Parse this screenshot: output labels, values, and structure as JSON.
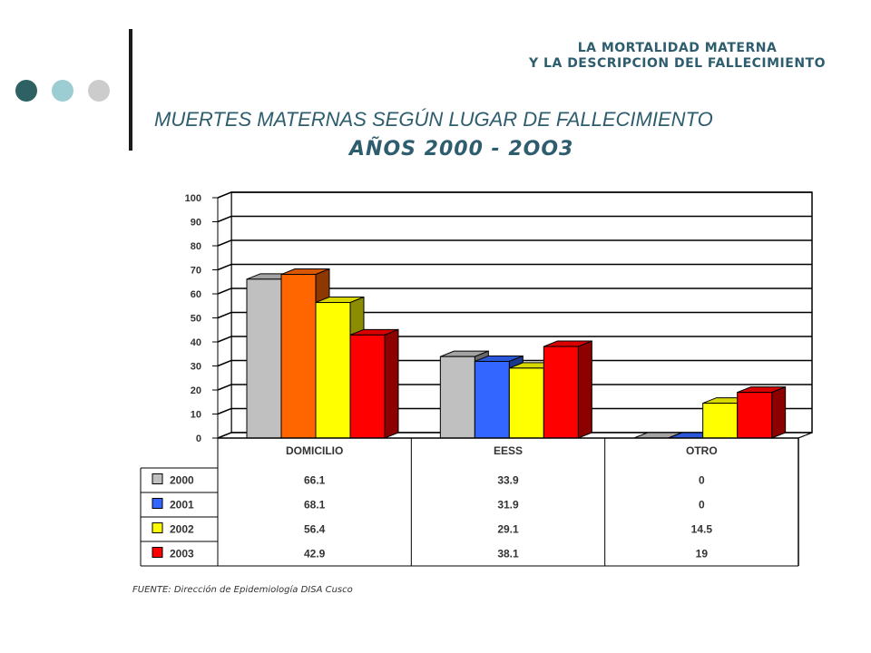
{
  "header": {
    "line1": "LA MORTALIDAD MATERNA",
    "line2": "Y LA DESCRIPCION DEL FALLECIMIENTO"
  },
  "title": {
    "line1": "MUERTES MATERNAS SEGÚN LUGAR DE FALLECIMIENTO",
    "line2": "AÑOS 2000 - 2OO3"
  },
  "source": "FUENTE: Dirección de Epidemiología DISA Cusco",
  "decor_dot_colors": [
    "#2e6163",
    "#9ccdd3",
    "#cccccc"
  ],
  "chart_data": {
    "type": "bar",
    "categories": [
      "DOMICILIO",
      "EESS",
      "OTRO"
    ],
    "series": [
      {
        "name": "2000",
        "values": [
          66.1,
          33.9,
          0
        ],
        "color": "#c0c0c0"
      },
      {
        "name": "2001",
        "values": [
          68.1,
          31.9,
          0
        ],
        "color": "#ff6600"
      },
      {
        "name": "2002",
        "values": [
          56.4,
          29.1,
          14.5
        ],
        "color": "#ffff00"
      },
      {
        "name": "2003",
        "values": [
          42.9,
          38.1,
          19
        ],
        "color": "#ff0000"
      }
    ],
    "series_colors_by_category": [
      [
        "#c0c0c0",
        "#ff6600",
        "#ffff00",
        "#ff0000"
      ],
      [
        "#c0c0c0",
        "#3366ff",
        "#ffff00",
        "#ff0000"
      ],
      [
        "#c0c0c0",
        "#3366ff",
        "#ffff00",
        "#ff0000"
      ]
    ],
    "legend_colors": [
      "#c0c0c0",
      "#3366ff",
      "#ffff00",
      "#ff0000"
    ],
    "yticks": [
      0,
      10,
      20,
      30,
      40,
      50,
      60,
      70,
      80,
      90,
      100
    ],
    "ylim": [
      0,
      100
    ],
    "grid": true,
    "data_table": true,
    "style": "3d-bar"
  }
}
